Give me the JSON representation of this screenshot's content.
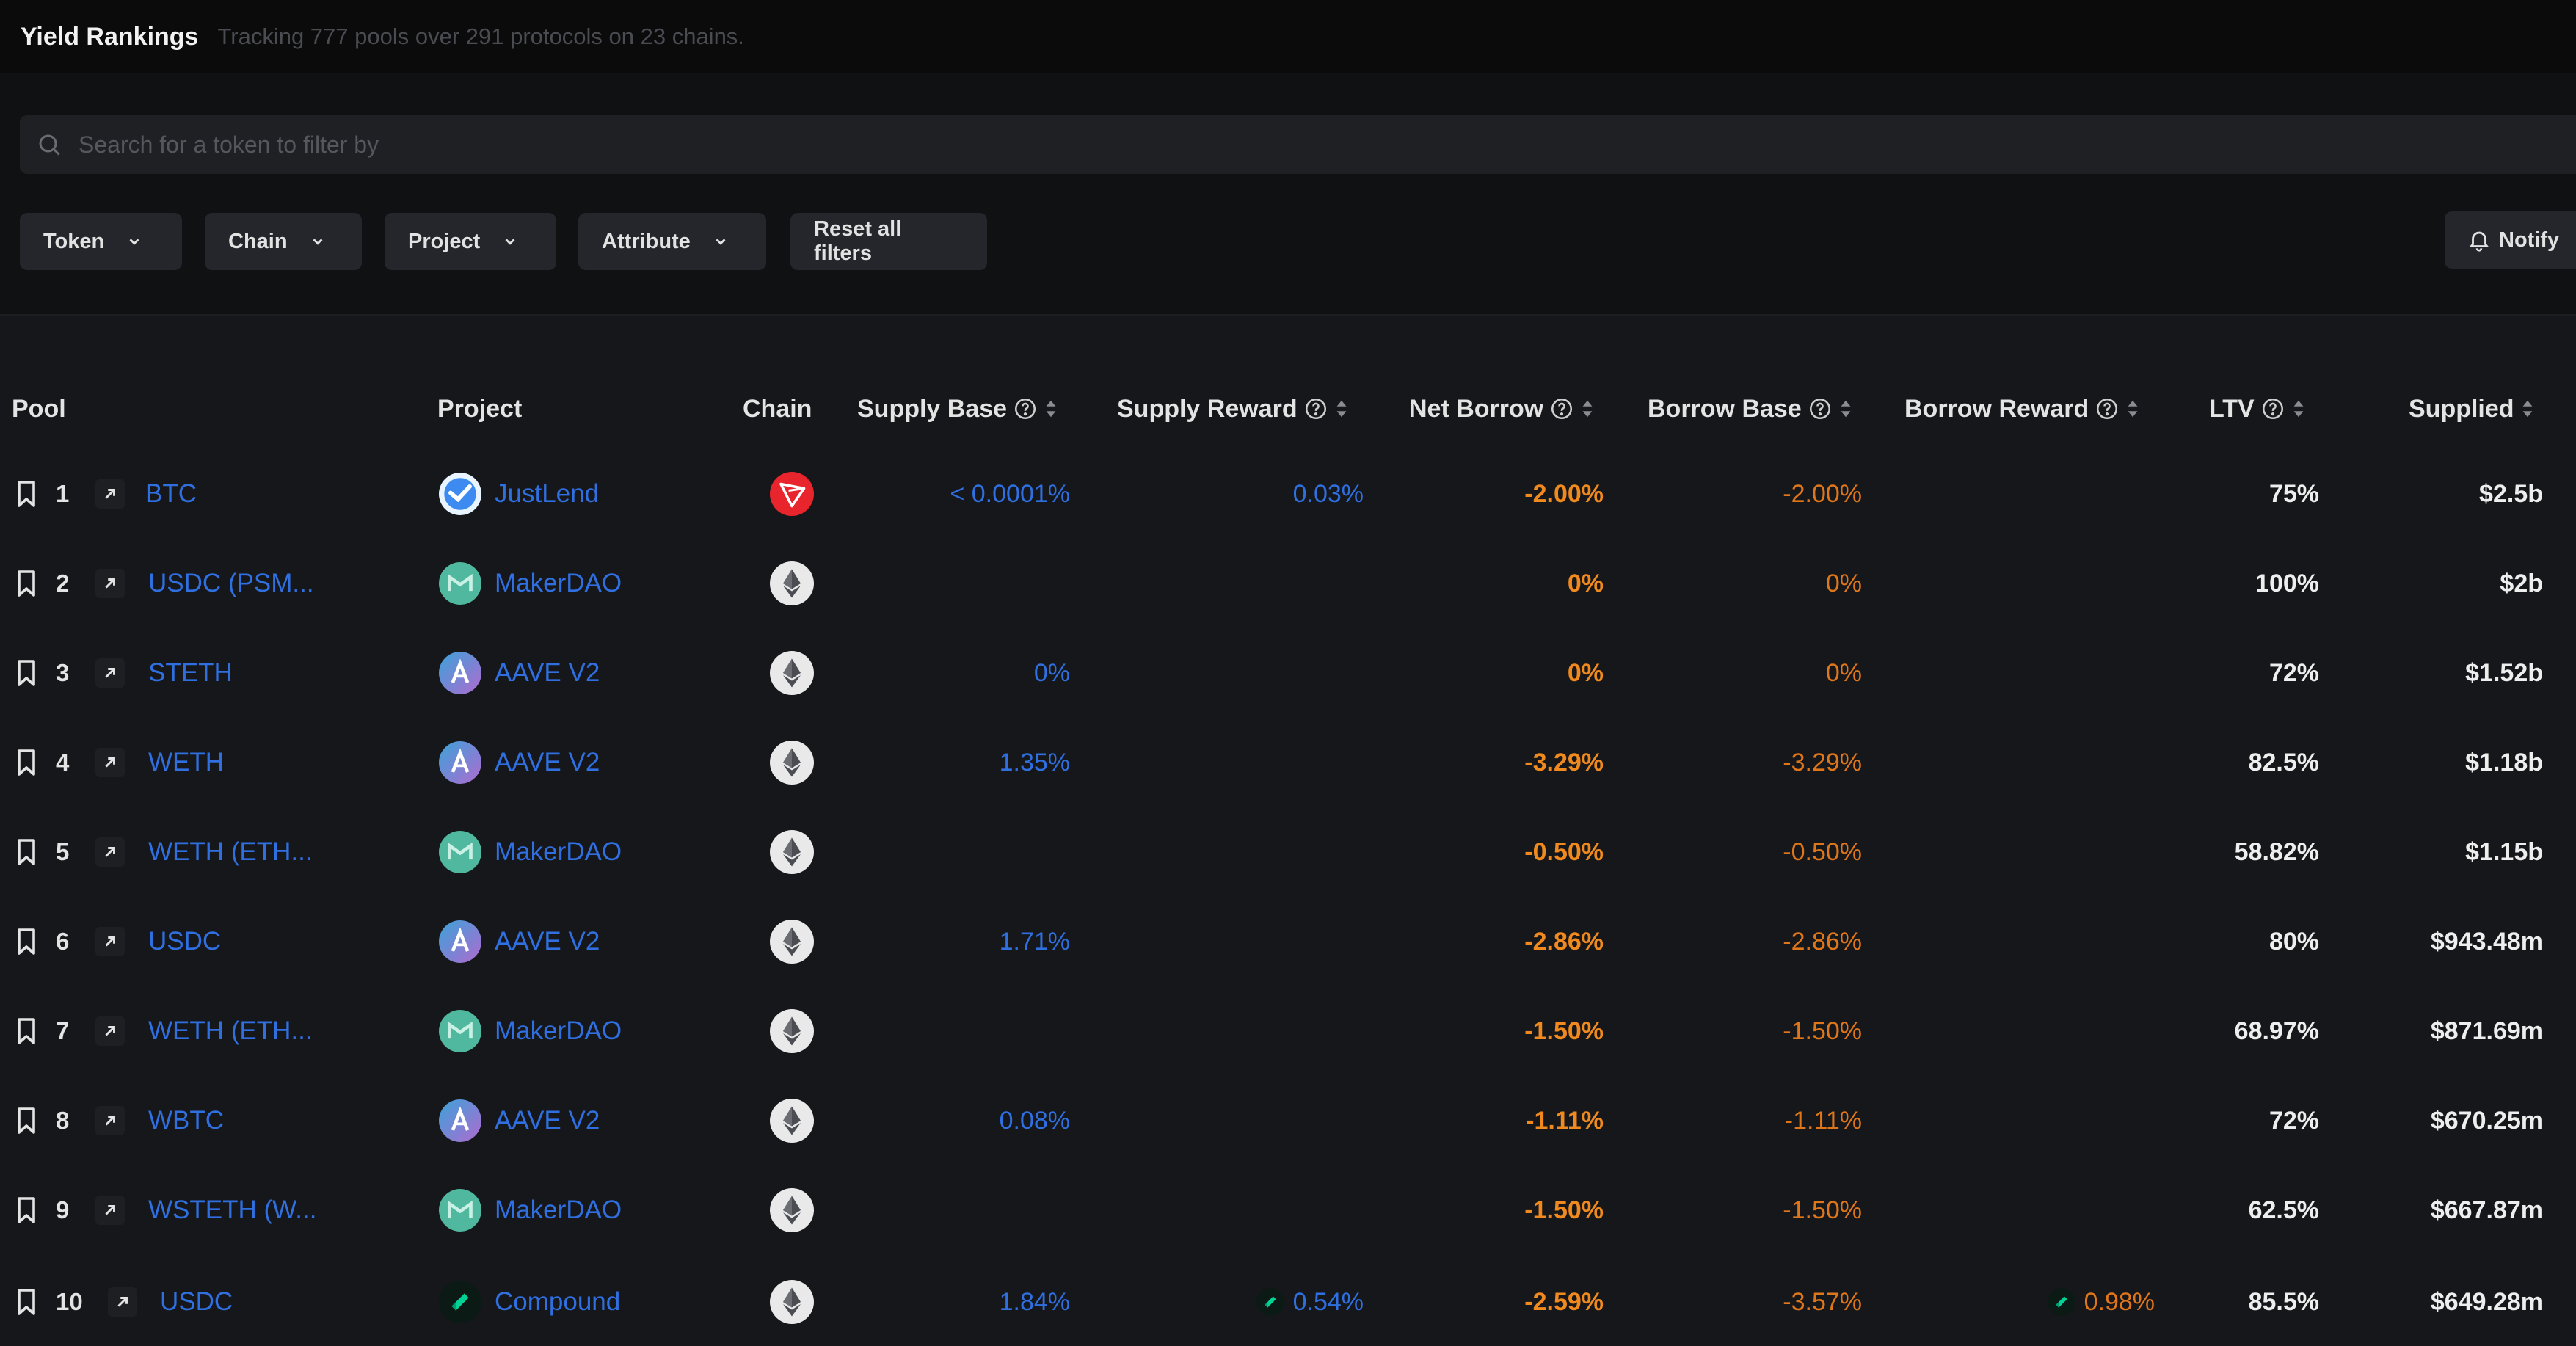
{
  "header": {
    "title": "Yield Rankings",
    "subtitle": "Tracking 777 pools over 291 protocols on 23 chains."
  },
  "search": {
    "placeholder": "Search for a token to filter by"
  },
  "filters": {
    "token": "Token",
    "chain": "Chain",
    "project": "Project",
    "attribute": "Attribute",
    "reset": "Reset all filters",
    "notify": "Notify"
  },
  "columns": {
    "pool": "Pool",
    "project": "Project",
    "chain": "Chain",
    "supply_base": "Supply Base",
    "supply_reward": "Supply Reward",
    "net_borrow": "Net Borrow",
    "borrow_base": "Borrow Base",
    "borrow_reward": "Borrow Reward",
    "ltv": "LTV",
    "supplied": "Supplied"
  },
  "colors": {
    "link": "#2f6fe0",
    "orange": "#f08a1e",
    "tron": "#e8242c",
    "maker": "#4fb89e",
    "aave": "#9a6fd0",
    "compound": "#00d395"
  },
  "rows": [
    {
      "rank": "1",
      "pool": "BTC",
      "project": "JustLend",
      "project_icon": "justlend",
      "chain_icon": "tron",
      "supply_base": "< 0.0001%",
      "supply_reward": "0.03%",
      "net_borrow": "-2.00%",
      "borrow_base": "-2.00%",
      "borrow_reward": "",
      "ltv": "75%",
      "supplied": "$2.5b"
    },
    {
      "rank": "2",
      "pool": "USDC (PSM...",
      "project": "MakerDAO",
      "project_icon": "maker",
      "chain_icon": "ethereum",
      "supply_base": "",
      "supply_reward": "",
      "net_borrow": "0%",
      "borrow_base": "0%",
      "borrow_reward": "",
      "ltv": "100%",
      "supplied": "$2b"
    },
    {
      "rank": "3",
      "pool": "STETH",
      "project": "AAVE V2",
      "project_icon": "aave",
      "chain_icon": "ethereum",
      "supply_base": "0%",
      "supply_reward": "",
      "net_borrow": "0%",
      "borrow_base": "0%",
      "borrow_reward": "",
      "ltv": "72%",
      "supplied": "$1.52b"
    },
    {
      "rank": "4",
      "pool": "WETH",
      "project": "AAVE V2",
      "project_icon": "aave",
      "chain_icon": "ethereum",
      "supply_base": "1.35%",
      "supply_reward": "",
      "net_borrow": "-3.29%",
      "borrow_base": "-3.29%",
      "borrow_reward": "",
      "ltv": "82.5%",
      "supplied": "$1.18b"
    },
    {
      "rank": "5",
      "pool": "WETH (ETH...",
      "project": "MakerDAO",
      "project_icon": "maker",
      "chain_icon": "ethereum",
      "supply_base": "",
      "supply_reward": "",
      "net_borrow": "-0.50%",
      "borrow_base": "-0.50%",
      "borrow_reward": "",
      "ltv": "58.82%",
      "supplied": "$1.15b"
    },
    {
      "rank": "6",
      "pool": "USDC",
      "project": "AAVE V2",
      "project_icon": "aave",
      "chain_icon": "ethereum",
      "supply_base": "1.71%",
      "supply_reward": "",
      "net_borrow": "-2.86%",
      "borrow_base": "-2.86%",
      "borrow_reward": "",
      "ltv": "80%",
      "supplied": "$943.48m"
    },
    {
      "rank": "7",
      "pool": "WETH (ETH...",
      "project": "MakerDAO",
      "project_icon": "maker",
      "chain_icon": "ethereum",
      "supply_base": "",
      "supply_reward": "",
      "net_borrow": "-1.50%",
      "borrow_base": "-1.50%",
      "borrow_reward": "",
      "ltv": "68.97%",
      "supplied": "$871.69m"
    },
    {
      "rank": "8",
      "pool": "WBTC",
      "project": "AAVE V2",
      "project_icon": "aave",
      "chain_icon": "ethereum",
      "supply_base": "0.08%",
      "supply_reward": "",
      "net_borrow": "-1.11%",
      "borrow_base": "-1.11%",
      "borrow_reward": "",
      "ltv": "72%",
      "supplied": "$670.25m"
    },
    {
      "rank": "9",
      "pool": "WSTETH (W...",
      "project": "MakerDAO",
      "project_icon": "maker",
      "chain_icon": "ethereum",
      "supply_base": "",
      "supply_reward": "",
      "net_borrow": "-1.50%",
      "borrow_base": "-1.50%",
      "borrow_reward": "",
      "ltv": "62.5%",
      "supplied": "$667.87m"
    },
    {
      "rank": "10",
      "pool": "USDC",
      "project": "Compound",
      "project_icon": "compound",
      "chain_icon": "ethereum",
      "supply_base": "1.84%",
      "supply_reward": "0.54%",
      "supply_reward_icon": "compound",
      "net_borrow": "-2.59%",
      "borrow_base": "-3.57%",
      "borrow_reward": "0.98%",
      "borrow_reward_icon": "compound",
      "ltv": "85.5%",
      "supplied": "$649.28m"
    }
  ]
}
